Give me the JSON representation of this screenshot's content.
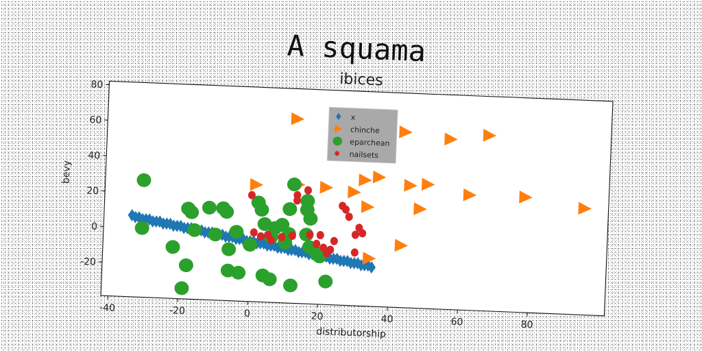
{
  "page": {
    "title": "A squama"
  },
  "chart_data": {
    "type": "scatter",
    "title": "ibices",
    "xlabel": "distributorship",
    "ylabel": "bevy",
    "xlim": [
      -42,
      102
    ],
    "ylim": [
      -39,
      82
    ],
    "xticks": [
      -40,
      -20,
      0,
      20,
      40,
      60,
      80
    ],
    "yticks": [
      -20,
      0,
      20,
      40,
      60,
      80
    ],
    "grid": false,
    "legend_position": "top-center",
    "series": [
      {
        "name": "x",
        "marker": "diamond",
        "color": "#1f77b4",
        "points": [
          [
            -34,
            7
          ],
          [
            -33,
            6
          ],
          [
            -32,
            6
          ],
          [
            -31,
            5
          ],
          [
            -30,
            5
          ],
          [
            -29,
            5
          ],
          [
            -28,
            4
          ],
          [
            -27,
            4
          ],
          [
            -26,
            4
          ],
          [
            -25,
            3
          ],
          [
            -24,
            3
          ],
          [
            -23,
            3
          ],
          [
            -22,
            2
          ],
          [
            -21,
            2
          ],
          [
            -20,
            2
          ],
          [
            -19,
            1
          ],
          [
            -18,
            1
          ],
          [
            -17,
            1
          ],
          [
            -16,
            0
          ],
          [
            -15,
            0
          ],
          [
            -14,
            0
          ],
          [
            -13,
            -1
          ],
          [
            -12,
            -1
          ],
          [
            -11,
            -1
          ],
          [
            -10,
            -2
          ],
          [
            -9,
            -2
          ],
          [
            -8,
            -2
          ],
          [
            -7,
            -3
          ],
          [
            -6,
            -3
          ],
          [
            -5,
            -3
          ],
          [
            -4,
            -4
          ],
          [
            -3,
            -4
          ],
          [
            -2,
            -4
          ],
          [
            -1,
            -5
          ],
          [
            0,
            -5
          ],
          [
            1,
            -5
          ],
          [
            2,
            -6
          ],
          [
            3,
            -6
          ],
          [
            4,
            -6
          ],
          [
            5,
            -7
          ],
          [
            6,
            -7
          ],
          [
            7,
            -7
          ],
          [
            8,
            -8
          ],
          [
            9,
            -8
          ],
          [
            10,
            -8
          ],
          [
            11,
            -9
          ],
          [
            12,
            -9
          ],
          [
            13,
            -9
          ],
          [
            14,
            -10
          ],
          [
            15,
            -10
          ],
          [
            16,
            -10
          ],
          [
            17,
            -11
          ],
          [
            18,
            -11
          ],
          [
            19,
            -11
          ],
          [
            20,
            -12
          ],
          [
            21,
            -12
          ],
          [
            22,
            -12
          ],
          [
            23,
            -13
          ],
          [
            24,
            -13
          ],
          [
            25,
            -13
          ],
          [
            26,
            -14
          ],
          [
            27,
            -14
          ],
          [
            28,
            -14
          ],
          [
            29,
            -15
          ],
          [
            30,
            -15
          ],
          [
            31,
            -15
          ],
          [
            32,
            -16
          ],
          [
            33,
            -16
          ],
          [
            34,
            -16
          ],
          [
            35,
            -17
          ]
        ]
      },
      {
        "name": "chinche",
        "marker": "triangle-right",
        "color": "#ff7f0e",
        "points": [
          [
            12,
            65
          ],
          [
            43,
            60
          ],
          [
            56,
            57
          ],
          [
            67,
            60
          ],
          [
            1,
            27
          ],
          [
            13,
            28
          ],
          [
            21,
            27
          ],
          [
            32,
            32
          ],
          [
            36,
            34
          ],
          [
            45,
            30
          ],
          [
            50,
            31
          ],
          [
            29,
            25
          ],
          [
            33,
            17
          ],
          [
            48,
            17
          ],
          [
            62,
            26
          ],
          [
            78,
            26
          ],
          [
            95,
            21
          ],
          [
            43,
            -4
          ],
          [
            34,
            -12
          ]
        ]
      },
      {
        "name": "eparchean",
        "marker": "circle",
        "color": "#2ca02c",
        "points": [
          [
            -31,
            27
          ],
          [
            -31,
            0
          ],
          [
            -22,
            -10
          ],
          [
            -18,
            -20
          ],
          [
            -19,
            -33
          ],
          [
            -18,
            12
          ],
          [
            -17,
            10
          ],
          [
            -16,
            0
          ],
          [
            -12,
            13
          ],
          [
            -10,
            -2
          ],
          [
            -8,
            13
          ],
          [
            -7,
            11
          ],
          [
            -6,
            -22
          ],
          [
            -4,
            0
          ],
          [
            -3,
            -23
          ],
          [
            -6,
            -10
          ],
          [
            0,
            -7
          ],
          [
            2,
            17
          ],
          [
            3,
            13
          ],
          [
            4,
            5
          ],
          [
            6,
            -2
          ],
          [
            4,
            -24
          ],
          [
            6,
            -26
          ],
          [
            7,
            3
          ],
          [
            9,
            5
          ],
          [
            10,
            -5
          ],
          [
            11,
            14
          ],
          [
            11,
            0
          ],
          [
            12,
            28
          ],
          [
            12,
            -29
          ],
          [
            16,
            19
          ],
          [
            16,
            14
          ],
          [
            17,
            9
          ],
          [
            16,
            0
          ],
          [
            17,
            -7
          ],
          [
            19,
            -10
          ],
          [
            20,
            -12
          ],
          [
            22,
            -26
          ]
        ]
      },
      {
        "name": "nailsets",
        "marker": "circle-small",
        "color": "#d62728",
        "points": [
          [
            0,
            21
          ],
          [
            1,
            0
          ],
          [
            3,
            -2
          ],
          [
            5,
            -1
          ],
          [
            6,
            -4
          ],
          [
            9,
            -2
          ],
          [
            12,
            -1
          ],
          [
            13,
            19
          ],
          [
            13,
            22
          ],
          [
            16,
            25
          ],
          [
            17,
            0
          ],
          [
            19,
            -5
          ],
          [
            20,
            0
          ],
          [
            21,
            -7
          ],
          [
            22,
            -10
          ],
          [
            23,
            -8
          ],
          [
            24,
            -3
          ],
          [
            26,
            17
          ],
          [
            27,
            15
          ],
          [
            28,
            11
          ],
          [
            30,
            1
          ],
          [
            31,
            5
          ],
          [
            30,
            -9
          ],
          [
            32,
            2
          ]
        ]
      }
    ]
  }
}
